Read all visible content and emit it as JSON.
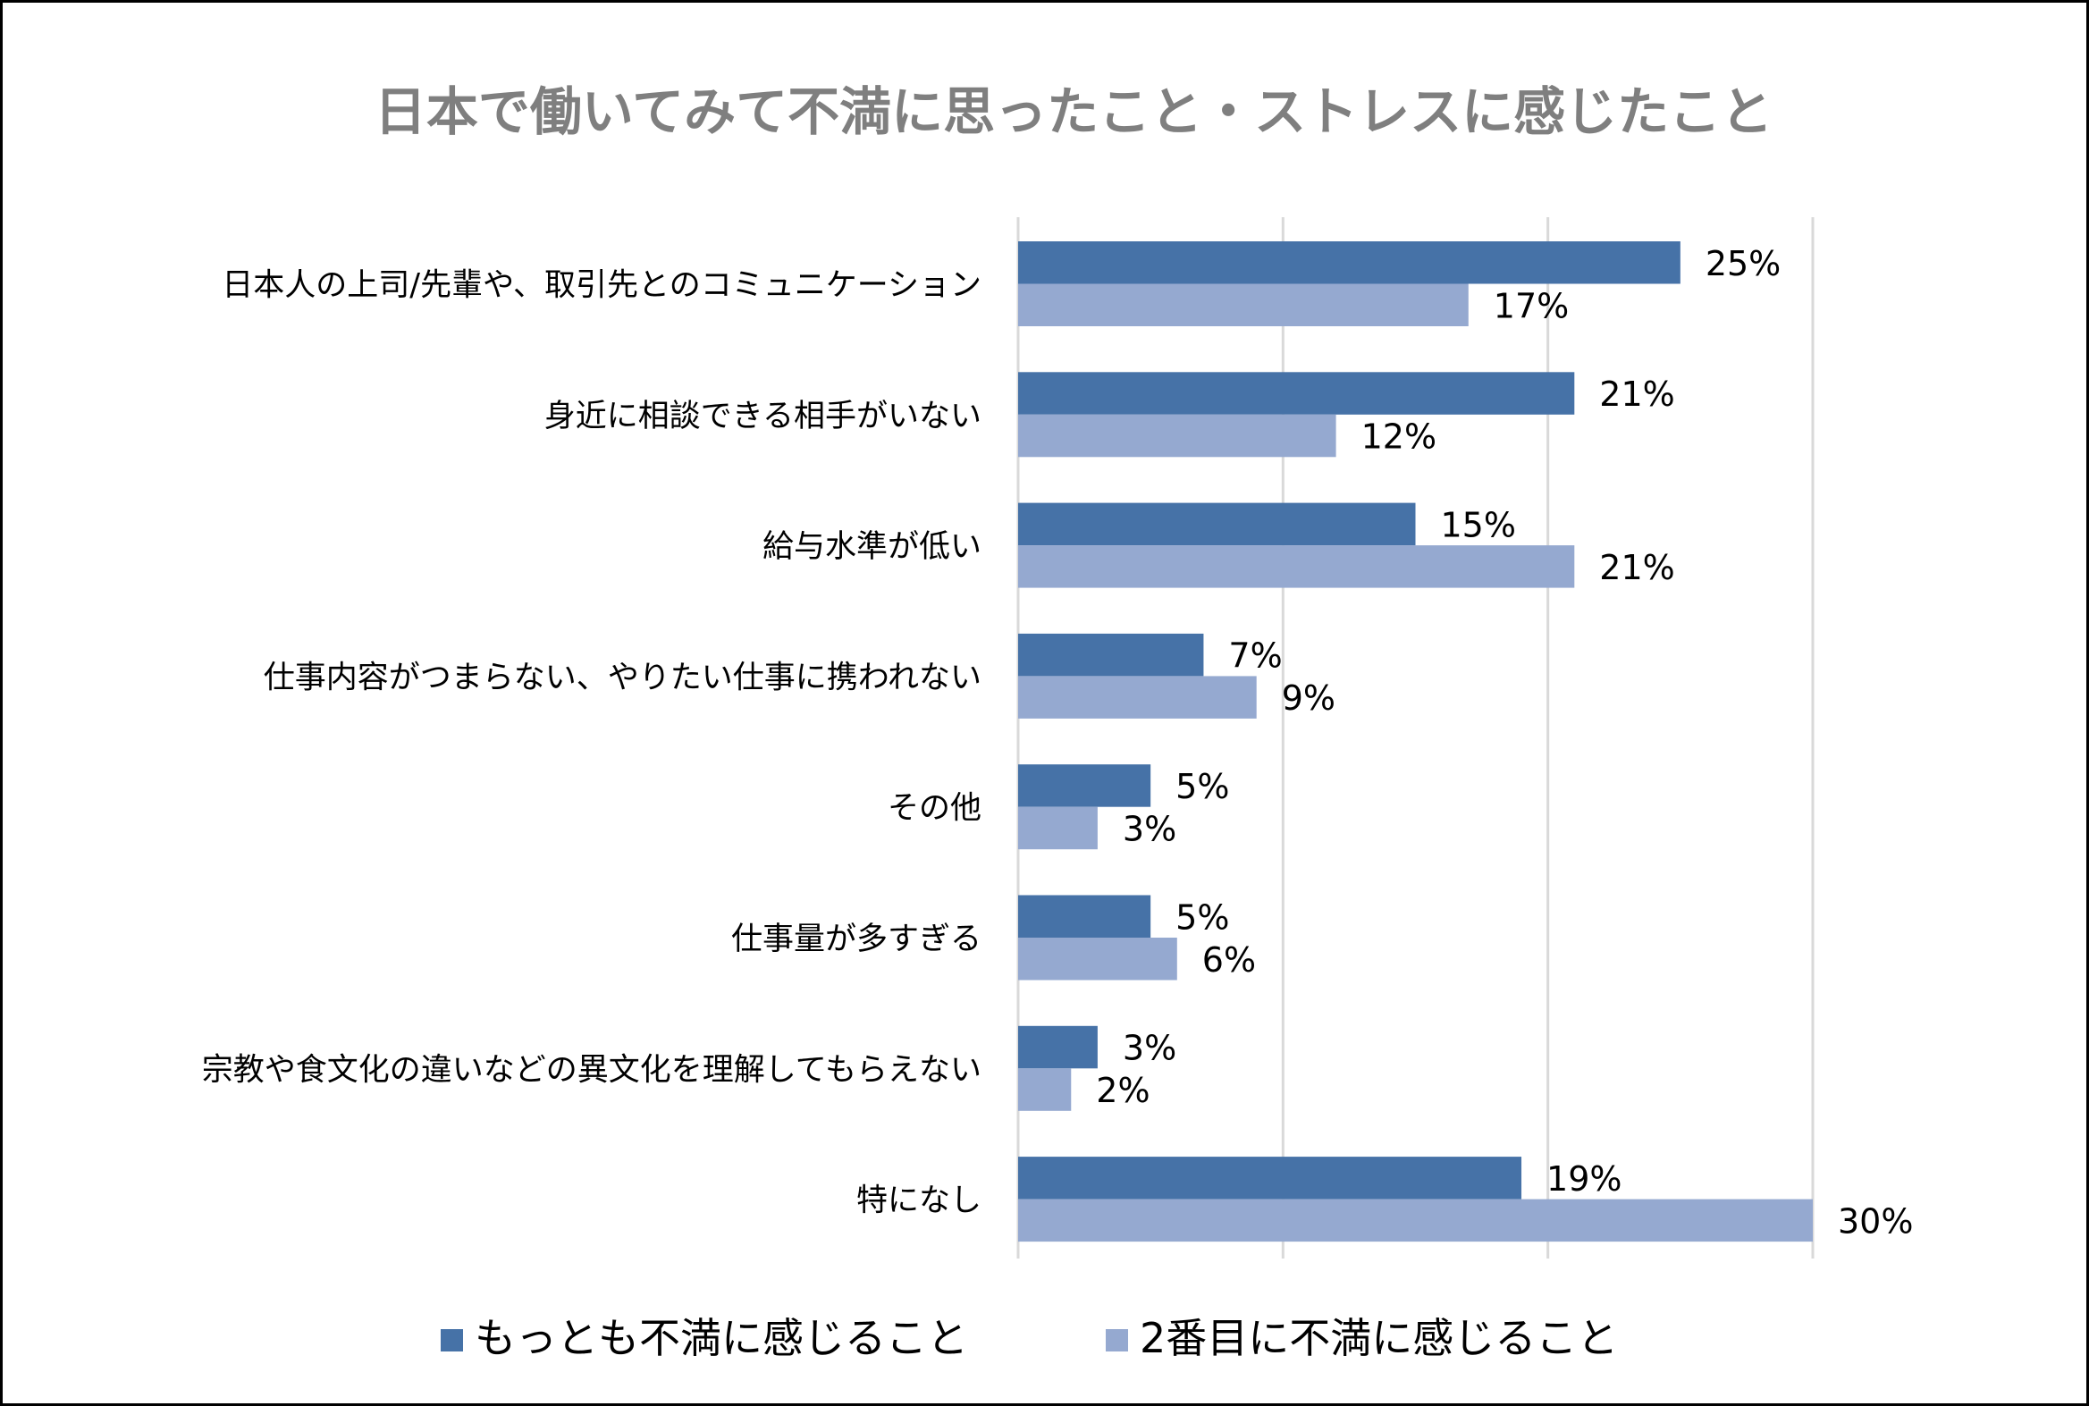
{
  "chart_data": {
    "type": "bar",
    "orientation": "horizontal",
    "title": "日本で働いてみて不満に思ったこと・ストレスに感じたこと",
    "categories": [
      "日本人の上司/先輩や、取引先とのコミュニケーション",
      "身近に相談できる相手がいない",
      "給与水準が低い",
      "仕事内容がつまらない、やりたい仕事に携われない",
      "その他",
      "仕事量が多すぎる",
      "宗教や食文化の違いなどの異文化を理解してもらえない",
      "特になし"
    ],
    "series": [
      {
        "name": "もっとも不満に感じること",
        "color": "#4672a7",
        "values": [
          25,
          21,
          15,
          7,
          5,
          5,
          3,
          19
        ]
      },
      {
        "name": "2番目に不満に感じること",
        "color": "#95a9d0",
        "values": [
          17,
          12,
          21,
          9,
          3,
          6,
          2,
          30
        ]
      }
    ],
    "value_suffix": "%",
    "xlim": [
      0,
      30
    ],
    "grid": true,
    "legend_position": "bottom"
  }
}
